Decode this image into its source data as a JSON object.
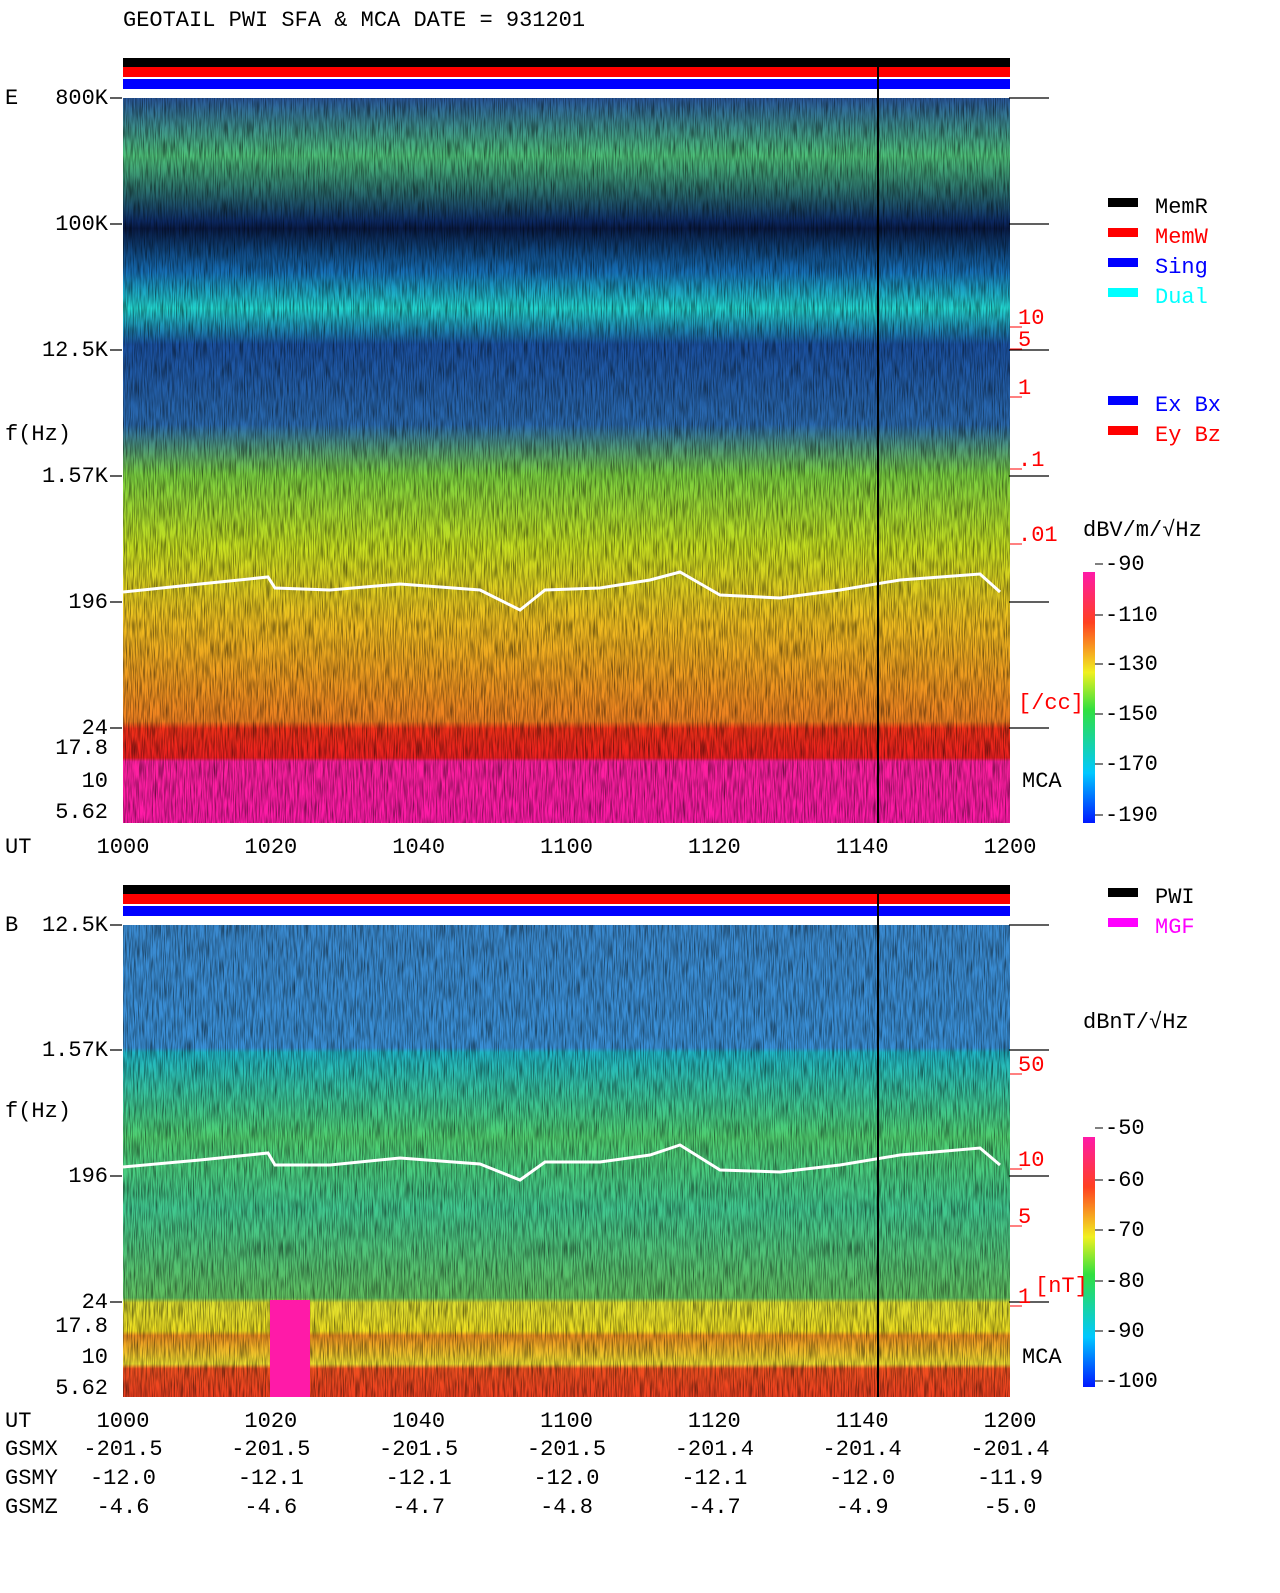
{
  "title": "GEOTAIL  PWI SFA & MCA   DATE = 931201",
  "panels": [
    {
      "label": "E",
      "freq_labels": [
        "800K",
        "100K",
        "12.5K",
        "1.57K",
        "196",
        "24",
        "17.8",
        "10",
        "5.62"
      ],
      "y_title": "f(Hz)",
      "x_title": "UT",
      "time_labels": [
        "1000",
        "1020",
        "1040",
        "1100",
        "1120",
        "1140",
        "1200"
      ],
      "right_labels": [
        "10",
        "5",
        "1",
        ".1",
        ".01",
        "[/cc]"
      ],
      "mca": "MCA",
      "legend": [
        "MemR",
        "MemW",
        "Sing",
        "Dual",
        "Ex Bx",
        "Ey Bz"
      ],
      "colorbar_title": "dBV/m/√Hz",
      "colorbar_ticks": [
        "-90",
        "-110",
        "-130",
        "-150",
        "-170",
        "-190"
      ]
    },
    {
      "label": "B",
      "freq_labels": [
        "12.5K",
        "1.57K",
        "196",
        "24",
        "17.8",
        "10",
        "5.62"
      ],
      "y_title": "f(Hz)",
      "x_title": "UT",
      "time_labels": [
        "1000",
        "1020",
        "1040",
        "1100",
        "1120",
        "1140",
        "1200"
      ],
      "right_labels": [
        "50",
        "10",
        "5",
        "1",
        "[nT]"
      ],
      "mca": "MCA",
      "legend": [
        "PWI",
        "MGF"
      ],
      "colorbar_title": "dBnT/√Hz",
      "colorbar_ticks": [
        "-50",
        "-60",
        "-70",
        "-80",
        "-90",
        "-100"
      ]
    }
  ],
  "orbit": {
    "rows": [
      {
        "label": "GSMX",
        "values": [
          "-201.5",
          "-201.5",
          "-201.5",
          "-201.5",
          "-201.4",
          "-201.4",
          "-201.4"
        ]
      },
      {
        "label": "GSMY",
        "values": [
          "-12.0",
          "-12.1",
          "-12.1",
          "-12.0",
          "-12.1",
          "-12.0",
          "-11.9"
        ]
      },
      {
        "label": "GSMZ",
        "values": [
          "-4.6",
          "-4.6",
          "-4.7",
          "-4.8",
          "-4.7",
          "-4.9",
          "-5.0"
        ]
      }
    ]
  }
}
